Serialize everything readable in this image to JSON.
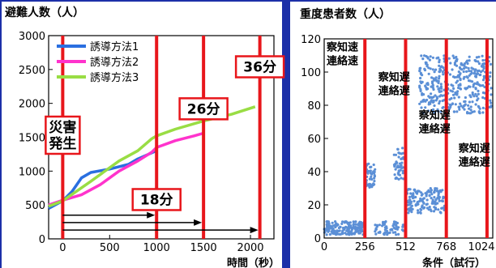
{
  "colors": {
    "background": "#1c2fa8",
    "panel": "#ffffff",
    "marker": "#e8161b",
    "method1": "#2a6fe0",
    "method2": "#ff33cc",
    "method3": "#99dd44",
    "scatter": "#5b8fd6"
  },
  "chart_data": [
    {
      "type": "line",
      "title": "避難人数（人）",
      "xlabel": "時間（秒）",
      "ylabel": "",
      "xlim": [
        -150,
        2250
      ],
      "ylim": [
        0,
        3000
      ],
      "x_ticks": [
        "0",
        "500",
        "1000",
        "1500",
        "2000"
      ],
      "y_ticks": [
        "0",
        "500",
        "1000",
        "1500",
        "2000",
        "2500",
        "3000"
      ],
      "legend_position": "top-left",
      "series": [
        {
          "name": "誘導方法1",
          "color_key": "method1",
          "x": [
            -150,
            0,
            100,
            200,
            300,
            500,
            700,
            800,
            950,
            1000
          ],
          "y": [
            450,
            560,
            700,
            900,
            980,
            1030,
            1100,
            1180,
            1270,
            1300
          ]
        },
        {
          "name": "誘導方法2",
          "color_key": "method2",
          "x": [
            -150,
            0,
            200,
            400,
            600,
            800,
            950,
            1000,
            1200,
            1400,
            1500
          ],
          "y": [
            500,
            570,
            650,
            800,
            1000,
            1150,
            1280,
            1350,
            1450,
            1520,
            1560
          ]
        },
        {
          "name": "誘導方法3",
          "color_key": "method3",
          "x": [
            -150,
            0,
            300,
            600,
            800,
            950,
            1000,
            1200,
            1500,
            1800,
            2050
          ],
          "y": [
            480,
            560,
            850,
            1150,
            1300,
            1480,
            1520,
            1620,
            1740,
            1840,
            1950
          ]
        }
      ],
      "markers": [
        {
          "x": 0,
          "label": "災害\n発生",
          "label_y": 1530
        },
        {
          "x": 1000,
          "label": "18分",
          "label_y": 580
        },
        {
          "x": 1500,
          "label": "26分",
          "label_y": 1920
        },
        {
          "x": 2100,
          "label": "36分",
          "label_y": 2540
        }
      ],
      "arrows": [
        {
          "from": 0,
          "to": 1000,
          "y": 350
        },
        {
          "from": 0,
          "to": 1500,
          "y": 240
        },
        {
          "from": 0,
          "to": 2100,
          "y": 130
        }
      ]
    },
    {
      "type": "scatter",
      "title": "重度患者数（人）",
      "xlabel": "条件（試行）",
      "ylabel": "",
      "xlim": [
        0,
        1060
      ],
      "ylim": [
        0,
        120
      ],
      "x_ticks": [
        "0",
        "256",
        "512",
        "768",
        "1024"
      ],
      "y_ticks": [
        "0",
        "20",
        "40",
        "60",
        "80",
        "100",
        "120"
      ],
      "grid": false,
      "markers": [
        {
          "x": 256,
          "label": "察知速\n連絡速",
          "label_x": 15,
          "label_y": 113
        },
        {
          "x": 512,
          "label": "察知遅\n連絡遅",
          "label_x": 340,
          "label_y": 95
        },
        {
          "x": 768,
          "label": "察知遅\n連絡遅",
          "label_x": 595,
          "label_y": 72
        },
        {
          "x": 1024,
          "label": "察知遅\n連絡遅",
          "label_x": 845,
          "label_y": 52
        }
      ],
      "clusters": [
        {
          "x_range": [
            0,
            256
          ],
          "y_range": [
            2,
            10
          ],
          "count": 180
        },
        {
          "x_range": [
            256,
            320
          ],
          "y_range": [
            30,
            45
          ],
          "count": 50
        },
        {
          "x_range": [
            320,
            512
          ],
          "y_range": [
            2,
            10
          ],
          "count": 60
        },
        {
          "x_range": [
            440,
            512
          ],
          "y_range": [
            35,
            55
          ],
          "count": 50
        },
        {
          "x_range": [
            512,
            768
          ],
          "y_range": [
            15,
            30
          ],
          "count": 150
        },
        {
          "x_range": [
            600,
            768
          ],
          "y_range": [
            75,
            110
          ],
          "count": 150
        },
        {
          "x_range": [
            768,
            1050
          ],
          "y_range": [
            75,
            110
          ],
          "count": 230
        }
      ]
    }
  ]
}
